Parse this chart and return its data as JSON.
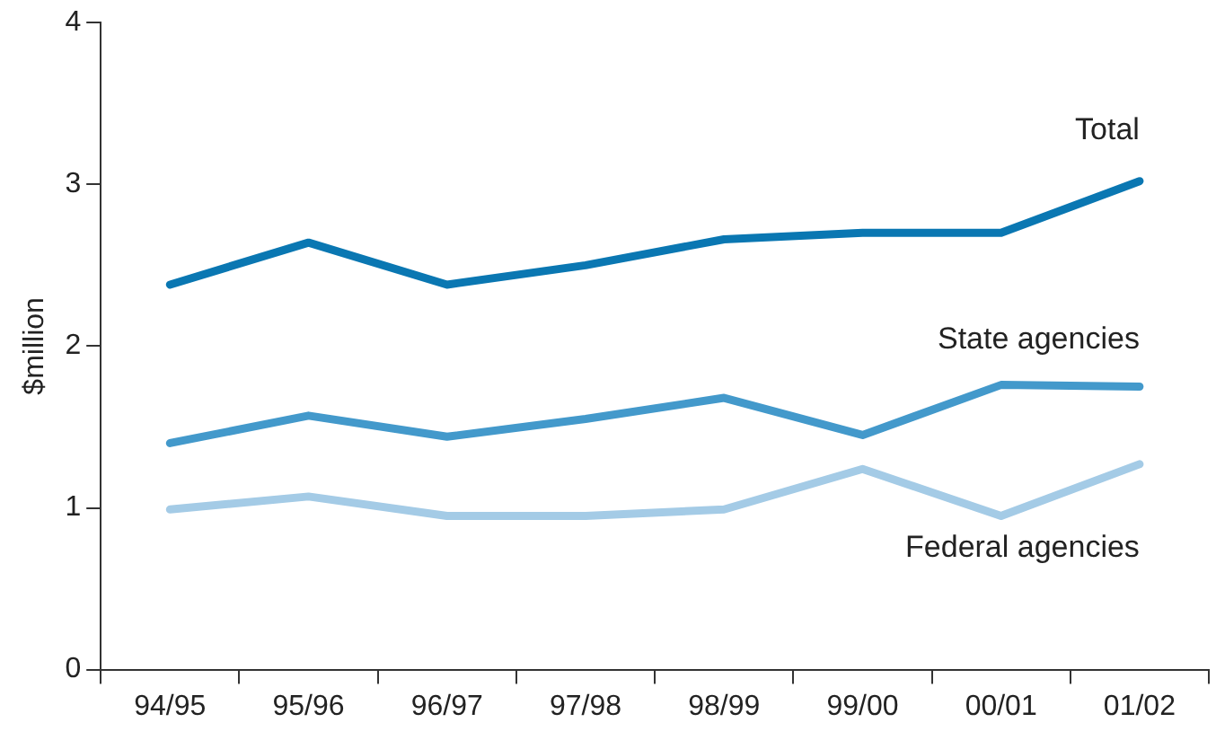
{
  "chart_data": {
    "type": "line",
    "ylabel": "$million",
    "categories": [
      "94/95",
      "95/96",
      "96/97",
      "97/98",
      "98/99",
      "99/00",
      "00/01",
      "01/02"
    ],
    "series": [
      {
        "name": "Total",
        "color": "#0a77b2",
        "values": [
          2.38,
          2.64,
          2.38,
          2.5,
          2.66,
          2.7,
          2.7,
          3.02
        ]
      },
      {
        "name": "State agencies",
        "color": "#4399cb",
        "values": [
          1.4,
          1.57,
          1.44,
          1.55,
          1.68,
          1.45,
          1.76,
          1.75
        ]
      },
      {
        "name": "Federal agencies",
        "color": "#a4cbe6",
        "values": [
          0.99,
          1.07,
          0.95,
          0.95,
          0.99,
          1.24,
          0.95,
          1.27
        ]
      }
    ],
    "ylim": [
      0,
      4
    ],
    "yticks": [
      0,
      1,
      2,
      3,
      4
    ],
    "grid": false,
    "legend": false,
    "marker": "none",
    "line_style": "solid"
  }
}
